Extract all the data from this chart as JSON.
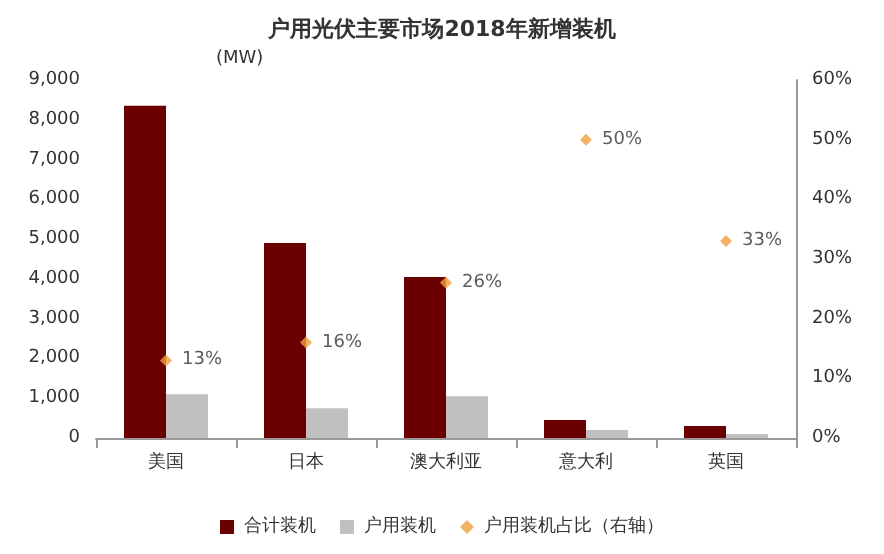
{
  "chart_data": {
    "type": "bar",
    "title": "户用光伏主要市场2018年新增装机",
    "ylabel": "(MW)",
    "categories": [
      "美国",
      "日本",
      "澳大利亚",
      "意大利",
      "英国"
    ],
    "series": [
      {
        "name": "合计装机",
        "color": "#6b0000",
        "values": [
          8350,
          4900,
          4050,
          450,
          300
        ]
      },
      {
        "name": "户用装机",
        "color": "#c0c0c0",
        "values": [
          1100,
          750,
          1050,
          200,
          100
        ]
      },
      {
        "name": "户用装机占比（右轴）",
        "type": "scatter",
        "axis": "y2",
        "color": "#f0a040",
        "values": [
          13,
          16,
          26,
          50,
          33
        ],
        "value_labels": [
          "13%",
          "16%",
          "26%",
          "50%",
          "33%"
        ]
      }
    ],
    "ylim": [
      0,
      9000
    ],
    "yticks": [
      0,
      {
        "value": 1000,
        "label": "1,000"
      },
      {
        "value": 2000,
        "label": "2,000"
      },
      {
        "value": 3000,
        "label": "3,000"
      },
      {
        "value": 4000,
        "label": "4,000"
      },
      {
        "value": 5000,
        "label": "5,000"
      },
      {
        "value": 6000,
        "label": "6,000"
      },
      {
        "value": 7000,
        "label": "7,000"
      },
      {
        "value": 8000,
        "label": "8,000"
      },
      {
        "value": 9000,
        "label": "9,000"
      }
    ],
    "y2lim": [
      0,
      60
    ],
    "y2ticks": [
      {
        "value": 0,
        "label": "0%"
      },
      {
        "value": 10,
        "label": "10%"
      },
      {
        "value": 20,
        "label": "20%"
      },
      {
        "value": 30,
        "label": "30%"
      },
      {
        "value": 40,
        "label": "40%"
      },
      {
        "value": 50,
        "label": "50%"
      },
      {
        "value": 60,
        "label": "60%"
      }
    ],
    "grid": false,
    "legend": "bottom",
    "marker": "diamond"
  }
}
